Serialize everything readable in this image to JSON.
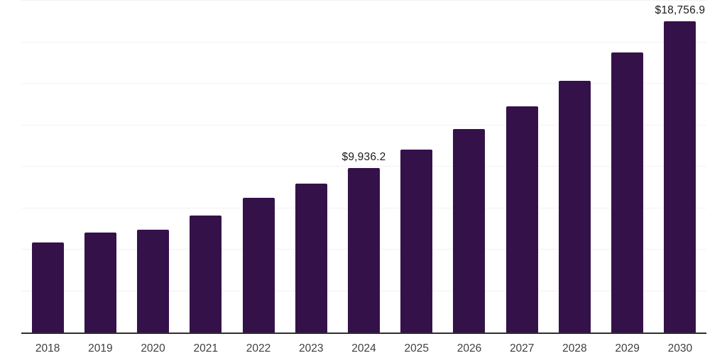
{
  "chart_data": {
    "type": "bar",
    "categories": [
      "2018",
      "2019",
      "2020",
      "2021",
      "2022",
      "2023",
      "2024",
      "2025",
      "2026",
      "2027",
      "2028",
      "2029",
      "2030"
    ],
    "values": [
      5420,
      6030,
      6180,
      7060,
      8120,
      8980,
      9936.2,
      11010,
      12250,
      13630,
      15170,
      16880,
      18756.9
    ],
    "data_labels": [
      "",
      "",
      "",
      "",
      "",
      "",
      "$9,936.2",
      "",
      "",
      "",
      "",
      "",
      "$18,756.9"
    ],
    "title": "",
    "xlabel": "",
    "ylabel": "",
    "ylim": [
      0,
      20000
    ],
    "gridline_step": 2500,
    "grid": "horizontal",
    "legend": "none",
    "y_axis_labels_visible": false,
    "colors": {
      "bar": "#35114A",
      "axis_line": "#2e2e2e",
      "gridline": "#f2f2f2",
      "data_label_text": "#1a1a1a",
      "tick_label_text": "#3f3f3f",
      "background": "#ffffff"
    }
  }
}
